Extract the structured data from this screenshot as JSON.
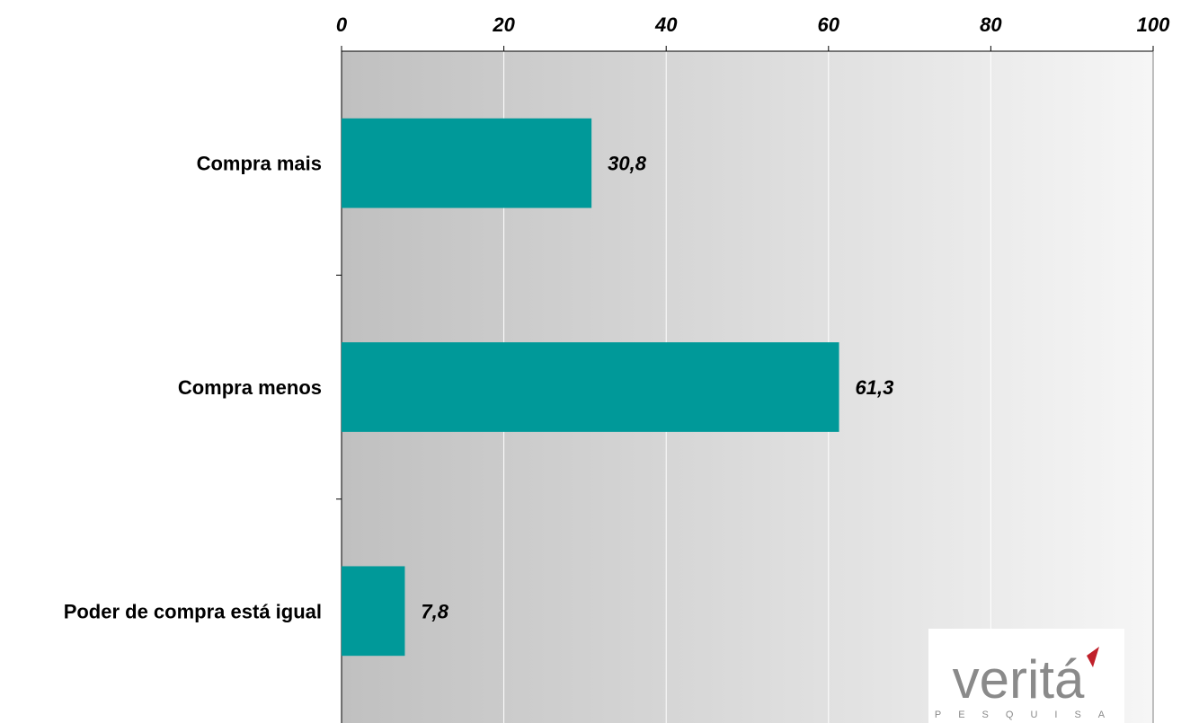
{
  "chart_data": {
    "type": "bar",
    "orientation": "horizontal",
    "categories": [
      "Compra mais",
      "Compra menos",
      "Poder de compra está igual"
    ],
    "values": [
      30.8,
      61.3,
      7.8
    ],
    "value_labels": [
      "30,8",
      "61,3",
      "7,8"
    ],
    "xlim": [
      0,
      100
    ],
    "x_ticks": [
      0,
      20,
      40,
      60,
      80,
      100
    ],
    "x_tick_labels": [
      "0",
      "20",
      "40",
      "60",
      "80",
      "100"
    ],
    "x_axis_position": "top",
    "grid": true,
    "bar_color": "#009999",
    "title": "",
    "xlabel": "",
    "ylabel": ""
  },
  "logo": {
    "name": "verita-logo",
    "wordmark": "veritá",
    "subtitle": "PESQUISA",
    "accent_color": "#c0202a",
    "text_color": "#8a8a8a"
  }
}
